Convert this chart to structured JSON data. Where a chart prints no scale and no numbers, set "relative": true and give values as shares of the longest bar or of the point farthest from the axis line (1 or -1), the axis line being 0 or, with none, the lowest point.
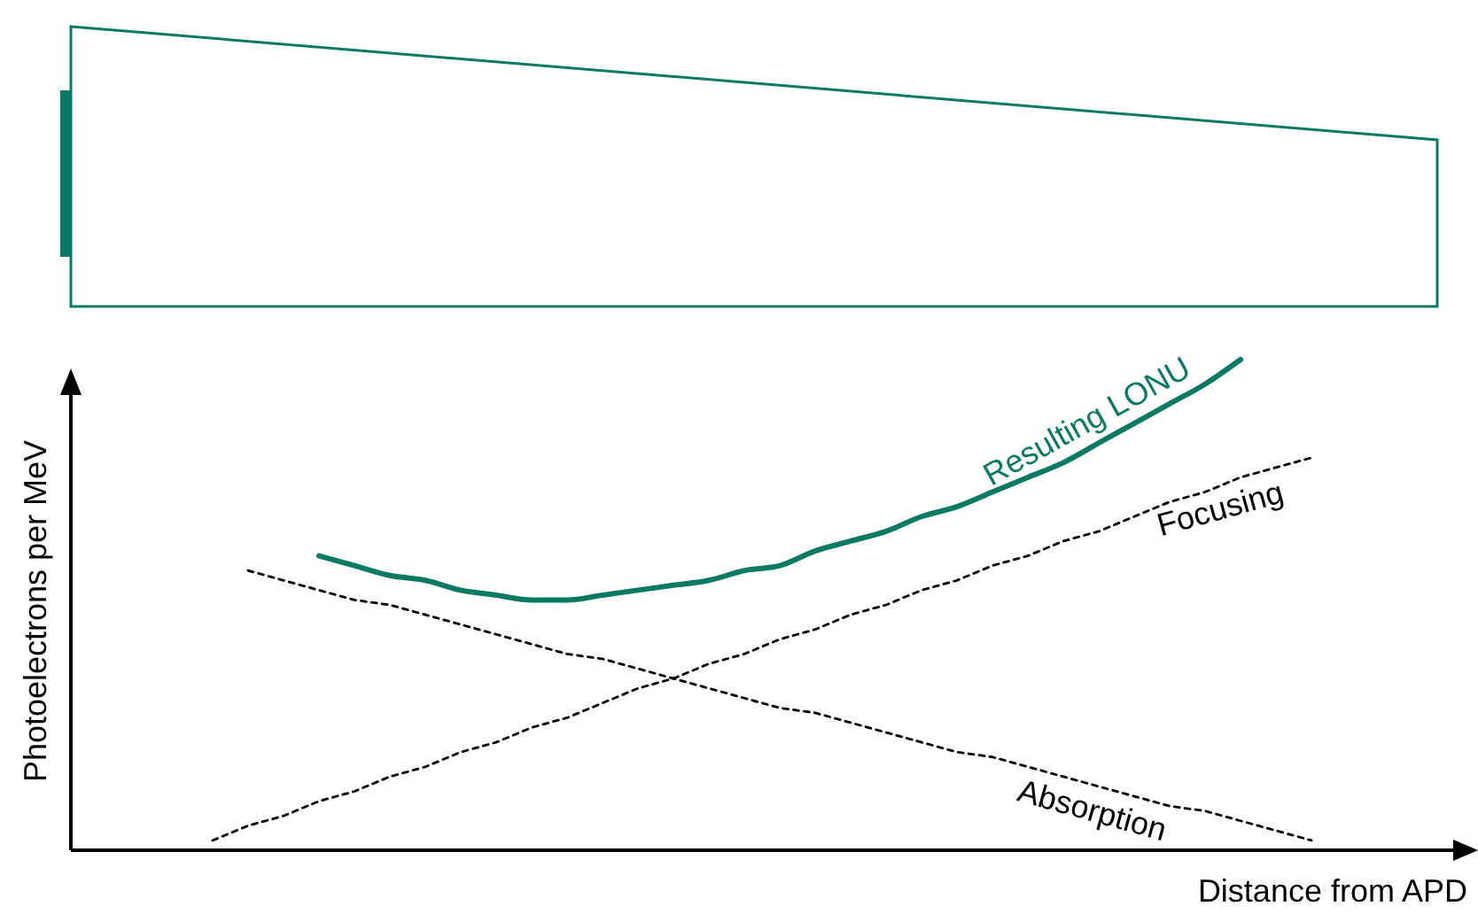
{
  "chart_data": {
    "type": "line",
    "relative": true,
    "xlabel": "Distance from APD",
    "ylabel": "Photoelectrons per MeV",
    "categories": [
      null,
      null,
      null,
      null,
      null,
      null,
      null,
      null,
      null,
      null,
      null,
      null,
      null,
      null,
      null,
      null,
      null,
      null,
      null,
      null,
      null,
      null,
      null,
      null,
      null,
      null,
      null,
      null,
      null,
      null,
      null,
      null
    ],
    "series": [
      {
        "name": "Resulting LONU",
        "color": "#0b7a62",
        "line_style": "solid",
        "values": [
          null,
          null,
          null,
          0.6,
          0.58,
          0.56,
          0.55,
          0.53,
          0.52,
          0.51,
          0.51,
          0.52,
          0.53,
          0.54,
          0.55,
          0.57,
          0.58,
          0.61,
          0.63,
          0.65,
          0.68,
          0.7,
          0.73,
          0.76,
          0.79,
          0.83,
          0.87,
          0.91,
          0.95,
          1,
          null,
          null
        ]
      },
      {
        "name": "Focusing",
        "color": "#000000",
        "line_style": "dotted",
        "values": [
          0.02,
          0.05,
          0.07,
          0.1,
          0.12,
          0.15,
          0.17,
          0.2,
          0.22,
          0.25,
          0.27,
          0.3,
          0.33,
          0.35,
          0.38,
          0.4,
          0.43,
          0.45,
          0.48,
          0.5,
          0.53,
          0.55,
          0.58,
          0.6,
          0.63,
          0.65,
          0.68,
          0.71,
          0.73,
          0.76,
          0.78,
          0.8
        ]
      },
      {
        "name": "Absorption",
        "color": "#000000",
        "line_style": "dotted",
        "values": [
          null,
          0.57,
          0.55,
          0.53,
          0.51,
          0.5,
          0.48,
          0.46,
          0.44,
          0.42,
          0.4,
          0.39,
          0.37,
          0.35,
          0.33,
          0.31,
          0.29,
          0.28,
          0.26,
          0.24,
          0.22,
          0.2,
          0.19,
          0.17,
          0.15,
          0.13,
          0.11,
          0.09,
          0.08,
          0.06,
          0.04,
          0.02
        ]
      }
    ]
  }
}
